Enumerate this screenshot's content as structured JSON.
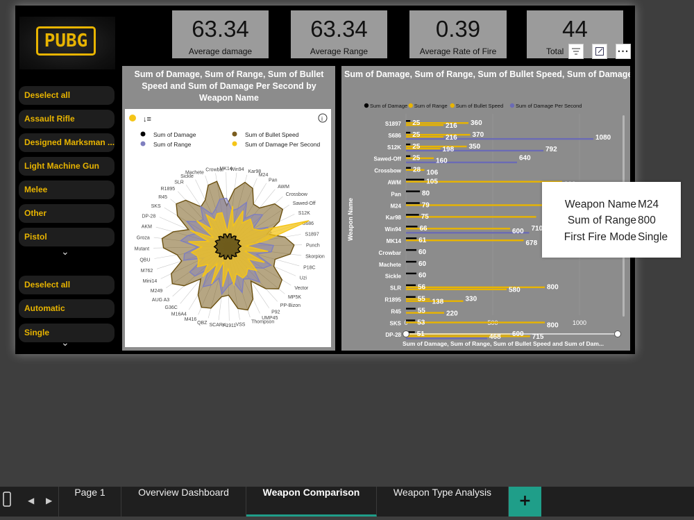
{
  "brand": {
    "logo_text": "PUBG",
    "accent": "#e8b400"
  },
  "kpis": [
    {
      "value": "63.34",
      "label": "Average damage"
    },
    {
      "value": "63.34",
      "label": "Average Range"
    },
    {
      "value": "0.39",
      "label": "Average Rate of Fire"
    },
    {
      "value": "44",
      "label": "Total"
    }
  ],
  "visual_header": {
    "icons": [
      "filter-icon",
      "focus-mode-icon",
      "more-options-icon"
    ]
  },
  "slicer_type": {
    "deselect_label": "Deselect all",
    "items": [
      "Assault Rifle",
      "Designed Marksman ...",
      "Light Machine Gun",
      "Melee",
      "Other",
      "Pistol"
    ]
  },
  "slicer_fire_mode": {
    "deselect_label": "Deselect all",
    "items": [
      "Automatic",
      "Single"
    ]
  },
  "radar_panel": {
    "title": "Sum of Damage, Sum of Range, Sum of Bullet Speed and Sum of Damage Per Second by Weapon Name",
    "icons": [
      "emoji-icon",
      "sort-icon",
      "info-icon"
    ]
  },
  "bar_panel": {
    "title": "Sum of Damage, Sum of Range, Sum of Bullet Speed, Sum of Damage Per Second and First Fire Mode by Weapon Name",
    "x_axis_title": "Sum of Damage, Sum of Range, Sum of Bullet Speed and Sum of Dam...",
    "y_axis_title": "Weapon Name"
  },
  "chart_data": [
    {
      "type": "radar",
      "legend": [
        "Sum of Damage",
        "Sum of Range",
        "Sum of Bullet Speed",
        "Sum of Damage Per Second"
      ],
      "legend_colors": [
        "#000000",
        "#7f7fbf",
        "#7a5c1e",
        "#f5c518"
      ],
      "axes": [
        "MK14",
        "Win94",
        "Kar98",
        "M24",
        "Pan",
        "AWM",
        "Crossbow",
        "Sawed-Off",
        "S12K",
        "S686",
        "S1897",
        "Punch",
        "Skorpion",
        "P18C",
        "Uzi",
        "Vector",
        "MP5K",
        "PP-Bizon",
        "P92",
        "UMP45",
        "Thompson",
        "VSS",
        "P1911",
        "SCAR-L",
        "QBZ",
        "M416",
        "M16A4",
        "G36C",
        "AUG A3",
        "M249",
        "Mini14",
        "M762",
        "QBU",
        "Mutant",
        "Groza",
        "AKM",
        "DP-28",
        "SKS",
        "R45",
        "R1895",
        "SLR",
        "Sickle",
        "Machete",
        "Crowbar"
      ]
    },
    {
      "type": "bar",
      "orientation": "horizontal",
      "legend": [
        "Sum of Damage",
        "Sum of Range",
        "Sum of Bullet Speed",
        "Sum of Damage Per Second"
      ],
      "colors": [
        "#000000",
        "#e8b400",
        "#e8b400",
        "#6b6bb5"
      ],
      "xlim": [
        0,
        1100
      ],
      "x_ticks": [
        "0",
        "500",
        "1000"
      ],
      "categories": [
        "S1897",
        "S686",
        "S12K",
        "Sawed-Off",
        "Crossbow",
        "AWM",
        "Pan",
        "M24",
        "Kar98",
        "Win94",
        "MK14",
        "Crowbar",
        "Machete",
        "Sickle",
        "SLR",
        "R1895",
        "R45",
        "SKS",
        "DP-28"
      ],
      "series": [
        {
          "name": "Sum of Damage",
          "values": [
            25,
            25,
            25,
            25,
            28,
            105,
            80,
            79,
            75,
            66,
            61,
            60,
            60,
            60,
            56,
            55,
            55,
            53,
            51
          ]
        },
        {
          "name": "Sum of Range",
          "values": [
            360,
            370,
            350,
            160,
            106,
            900,
            0,
            800,
            750,
            600,
            678,
            0,
            0,
            0,
            800,
            138,
            0,
            800,
            600
          ]
        },
        {
          "name": "Sum of Bullet Speed",
          "values": [
            216,
            216,
            198,
            0,
            0,
            0,
            0,
            0,
            0,
            0,
            0,
            0,
            0,
            0,
            580,
            330,
            220,
            0,
            715
          ]
        },
        {
          "name": "Sum of Damage Per Second",
          "values": [
            0,
            1080,
            792,
            640,
            0,
            0,
            0,
            0,
            0,
            710,
            0,
            0,
            0,
            0,
            0,
            0,
            0,
            0,
            468
          ]
        }
      ],
      "labels": [
        [
          [
            "25",
            25
          ],
          [
            "216",
            216
          ],
          [
            "360",
            360
          ]
        ],
        [
          [
            "25",
            25
          ],
          [
            "216",
            216
          ],
          [
            "370",
            370
          ],
          [
            "1080",
            1080
          ]
        ],
        [
          [
            "25",
            25
          ],
          [
            "198",
            198
          ],
          [
            "350",
            350
          ],
          [
            "792",
            792
          ]
        ],
        [
          [
            "25",
            25
          ],
          [
            "160",
            160
          ],
          [
            "640",
            640
          ]
        ],
        [
          [
            "28",
            28
          ],
          [
            "106",
            106
          ]
        ],
        [
          [
            "105",
            105
          ],
          [
            "900",
            900
          ]
        ],
        [
          [
            "80",
            80
          ]
        ],
        [
          [
            "79",
            79
          ]
        ],
        [
          [
            "75",
            75
          ]
        ],
        [
          [
            "66",
            66
          ],
          [
            "600",
            600
          ],
          [
            "710",
            710
          ]
        ],
        [
          [
            "61",
            61
          ],
          [
            "678",
            678
          ]
        ],
        [
          [
            "60",
            60
          ]
        ],
        [
          [
            "60",
            60
          ]
        ],
        [
          [
            "60",
            60
          ]
        ],
        [
          [
            "56",
            56
          ],
          [
            "580",
            580
          ],
          [
            "800",
            800
          ]
        ],
        [
          [
            "55",
            55
          ],
          [
            "138",
            138
          ],
          [
            "330",
            330
          ]
        ],
        [
          [
            "55",
            55
          ],
          [
            "220",
            220
          ]
        ],
        [
          [
            "53",
            53
          ],
          [
            "800",
            800
          ]
        ],
        [
          [
            "51",
            51
          ],
          [
            "468",
            468
          ],
          [
            "600",
            600
          ],
          [
            "715",
            715
          ]
        ]
      ]
    }
  ],
  "tooltip": {
    "rows": [
      {
        "key": "Weapon Name",
        "value": "M24"
      },
      {
        "key": "Sum of Range",
        "value": "800"
      },
      {
        "key": "First Fire Mode",
        "value": "Single"
      }
    ]
  },
  "tabs": {
    "pages": [
      "Page 1",
      "Overview Dashboard",
      "Weapon Comparison",
      "Weapon Type Analysis"
    ],
    "active": "Weapon Comparison",
    "add_label": "+",
    "add_color": "#1f9e89"
  }
}
